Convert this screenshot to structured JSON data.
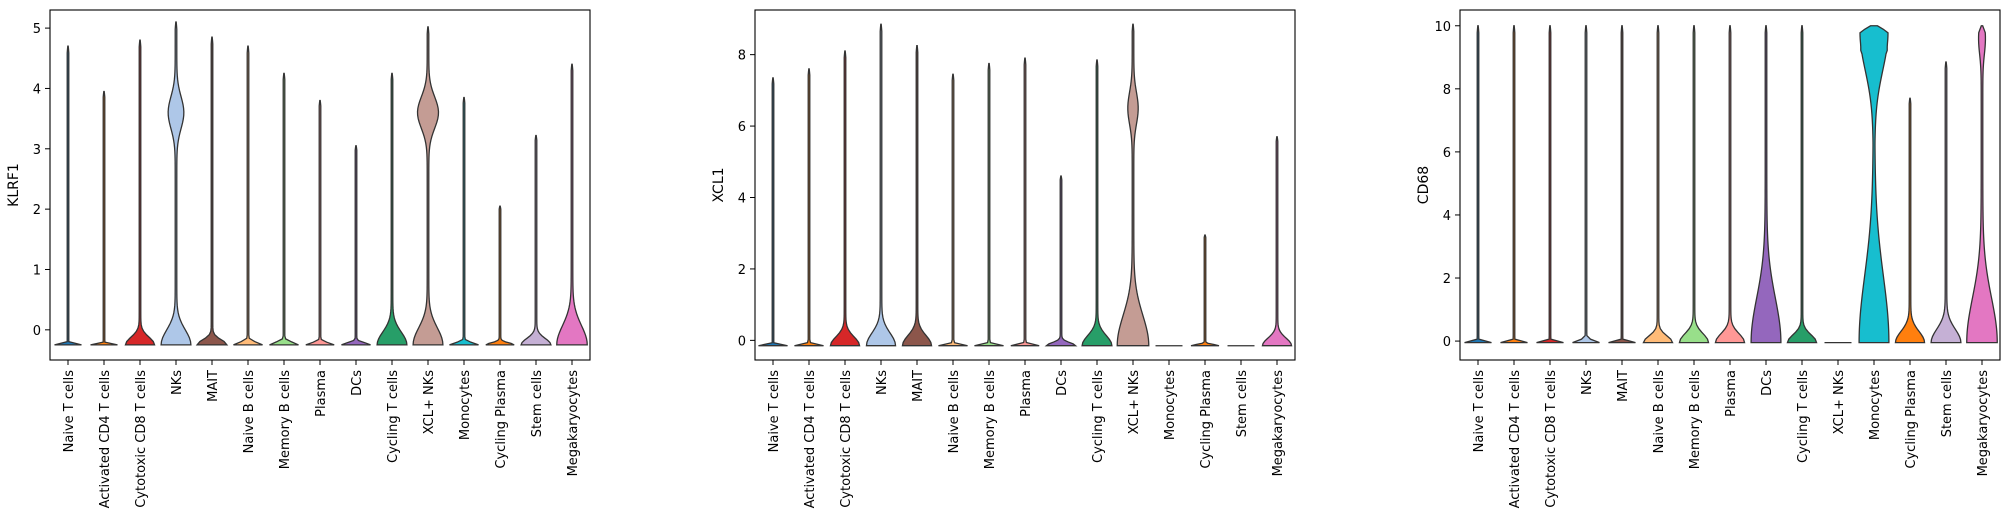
{
  "chart_data": [
    {
      "type": "violin",
      "ylabel": "KLRF1",
      "ylim": [
        -0.5,
        5.3
      ],
      "yticks": [
        0,
        1,
        2,
        3,
        4,
        5
      ],
      "categories": [
        "Naive T cells",
        "Activated CD4 T cells",
        "Cytotoxic CD8 T cells",
        "NKs",
        "MAIT",
        "Naive B cells",
        "Memory B cells",
        "Plasma",
        "DCs",
        "Cycling T cells",
        "XCL+ NKs",
        "Monocytes",
        "Cycling Plasma",
        "Stem cells",
        "Megakaryocytes"
      ],
      "colors": [
        "#1f77b4",
        "#ff7f0e",
        "#d62728",
        "#aec7e8",
        "#8c564b",
        "#ffbb78",
        "#98df8a",
        "#ff9896",
        "#9467bd",
        "#279e68",
        "#c49c94",
        "#17becf",
        "#ff7f0e",
        "#c5b0d5",
        "#e377c2"
      ],
      "min": -0.25,
      "max": [
        4.7,
        3.95,
        4.8,
        5.1,
        4.85,
        4.7,
        4.25,
        3.8,
        3.05,
        4.25,
        5.02,
        3.85,
        2.05,
        3.22,
        4.4
      ],
      "base_halfwidth": [
        0.72,
        0.72,
        0.78,
        0.8,
        0.8,
        0.78,
        0.78,
        0.76,
        0.78,
        0.8,
        0.8,
        0.78,
        0.76,
        0.8,
        0.82
      ],
      "bulge_height": [
        0.02,
        0.02,
        0.18,
        0.35,
        0.12,
        0.06,
        0.06,
        0.05,
        0.05,
        0.3,
        0.4,
        0.05,
        0.05,
        0.15,
        0.45
      ],
      "upper_mode": [
        null,
        null,
        null,
        {
          "y": 3.6,
          "w": 0.4
        },
        null,
        null,
        null,
        null,
        null,
        null,
        {
          "y": 3.6,
          "w": 0.55
        },
        null,
        null,
        null,
        null
      ]
    },
    {
      "type": "violin",
      "ylabel": "XCL1",
      "ylim": [
        -0.55,
        9.25
      ],
      "yticks": [
        0,
        2,
        4,
        6,
        8
      ],
      "categories": [
        "Naive T cells",
        "Activated CD4 T cells",
        "Cytotoxic CD8 T cells",
        "NKs",
        "MAIT",
        "Naive B cells",
        "Memory B cells",
        "Plasma",
        "DCs",
        "Cycling T cells",
        "XCL+ NKs",
        "Monocytes",
        "Cycling Plasma",
        "Stem cells",
        "Megakaryocytes"
      ],
      "colors": [
        "#1f77b4",
        "#ff7f0e",
        "#d62728",
        "#aec7e8",
        "#8c564b",
        "#ffbb78",
        "#98df8a",
        "#ff9896",
        "#9467bd",
        "#279e68",
        "#c49c94",
        "#17becf",
        "#ff7f0e",
        "#c5b0d5",
        "#e377c2"
      ],
      "min": -0.15,
      "max": [
        7.35,
        7.6,
        8.1,
        8.85,
        8.25,
        7.45,
        7.75,
        7.9,
        4.6,
        7.85,
        8.85,
        -0.15,
        2.95,
        -0.15,
        5.7
      ],
      "base_halfwidth": [
        0.78,
        0.78,
        0.78,
        0.78,
        0.78,
        0.78,
        0.78,
        0.76,
        0.78,
        0.8,
        0.85,
        0.75,
        0.75,
        0.75,
        0.78
      ],
      "bulge_height": [
        0.02,
        0.05,
        0.35,
        0.5,
        0.4,
        0.05,
        0.05,
        0.05,
        0.12,
        0.4,
        1.2,
        0,
        0.05,
        0,
        0.3
      ],
      "upper_mode": [
        null,
        null,
        null,
        null,
        null,
        null,
        null,
        null,
        null,
        null,
        {
          "y": 6.5,
          "w": 0.25
        },
        null,
        null,
        null,
        null
      ]
    },
    {
      "type": "violin",
      "ylabel": "CD68",
      "ylim": [
        -0.6,
        10.5
      ],
      "yticks": [
        0,
        2,
        4,
        6,
        8,
        10
      ],
      "categories": [
        "Naive T cells",
        "Activated CD4 T cells",
        "Cytotoxic CD8 T cells",
        "NKs",
        "MAIT",
        "Naive B cells",
        "Memory B cells",
        "Plasma",
        "DCs",
        "Cycling T cells",
        "XCL+ NKs",
        "Monocytes",
        "Cycling Plasma",
        "Stem cells",
        "Megakaryocytes"
      ],
      "colors": [
        "#1f77b4",
        "#ff7f0e",
        "#d62728",
        "#aec7e8",
        "#8c564b",
        "#ffbb78",
        "#98df8a",
        "#ff9896",
        "#9467bd",
        "#279e68",
        "#c49c94",
        "#17becf",
        "#ff7f0e",
        "#c5b0d5",
        "#e377c2"
      ],
      "min": -0.05,
      "max": [
        10.0,
        10.0,
        10.0,
        10.0,
        10.0,
        10.0,
        10.0,
        10.0,
        10.0,
        10.0,
        -0.05,
        10.0,
        7.7,
        8.85,
        10.0
      ],
      "base_halfwidth": [
        0.72,
        0.72,
        0.72,
        0.72,
        0.72,
        0.78,
        0.78,
        0.78,
        0.8,
        0.78,
        0.7,
        0.8,
        0.78,
        0.8,
        0.82
      ],
      "bulge_height": [
        0.05,
        0.05,
        0.05,
        0.1,
        0.05,
        0.3,
        0.4,
        0.4,
        2.0,
        0.35,
        0,
        3.0,
        0.5,
        0.6,
        2.0
      ],
      "upper_mode": [
        null,
        null,
        null,
        null,
        null,
        null,
        null,
        null,
        null,
        null,
        null,
        {
          "y": 9.8,
          "w": 0.75,
          "flat_top": true
        },
        null,
        null,
        {
          "y": 9.6,
          "w": 0.15
        }
      ]
    }
  ]
}
